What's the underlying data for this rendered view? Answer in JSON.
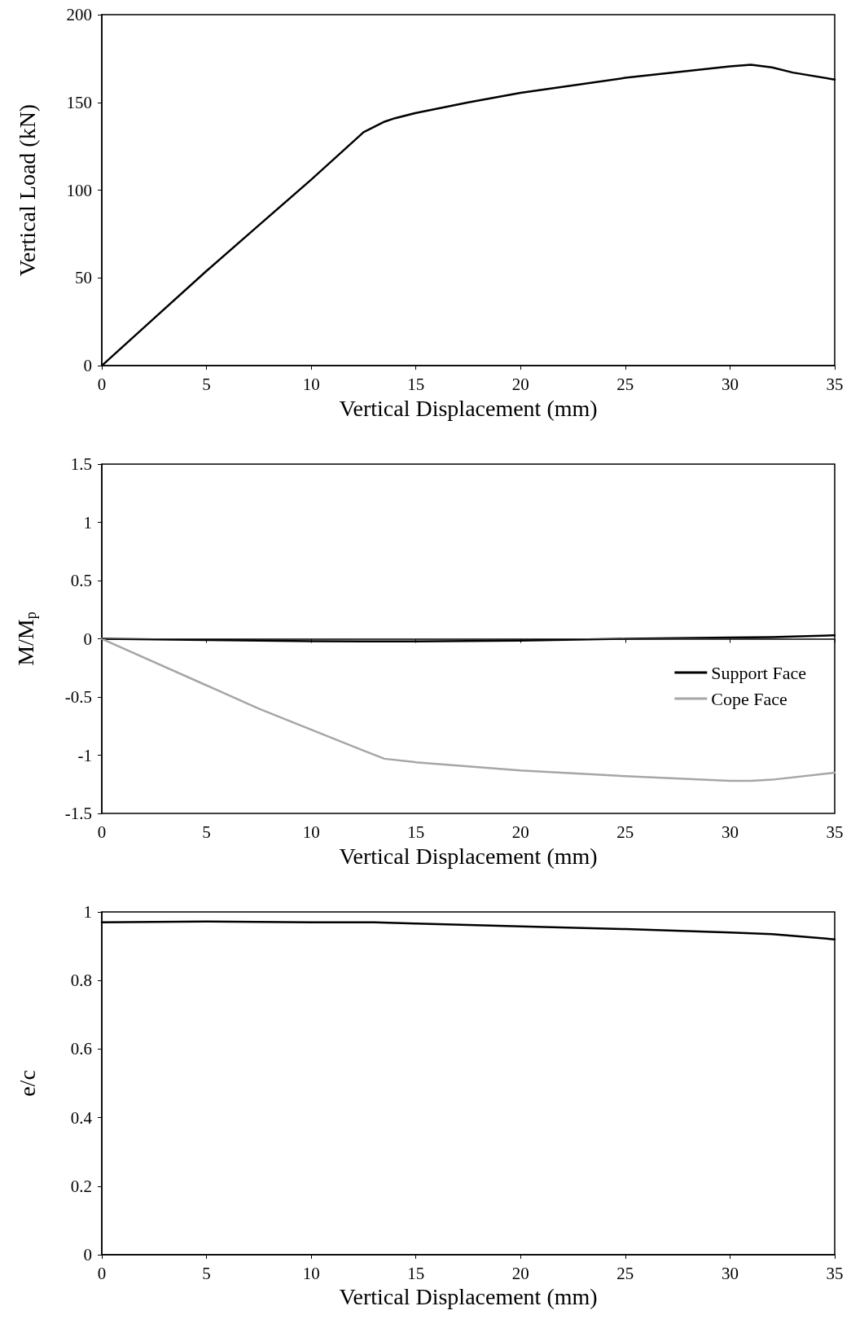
{
  "chart_data": [
    {
      "type": "line",
      "xlabel": "Vertical Displacement (mm)",
      "ylabel": "Vertical Load (kN)",
      "x": [
        0,
        2.5,
        5,
        7.5,
        10,
        12.5,
        13.5,
        14,
        15,
        17.5,
        20,
        25,
        30,
        31,
        32,
        33,
        35
      ],
      "values": [
        0,
        27,
        54,
        80,
        106,
        133,
        139,
        141,
        144,
        150,
        155.5,
        164,
        170.5,
        171.5,
        170,
        167,
        163
      ],
      "color": "#000000",
      "xlim": [
        0,
        35
      ],
      "xticks": [
        0,
        5,
        10,
        15,
        20,
        25,
        30,
        35
      ],
      "ylim": [
        0,
        200
      ],
      "yticks": [
        0,
        50,
        100,
        150,
        200
      ],
      "grid": false,
      "legend": false,
      "marker": "none",
      "line_style": "solid"
    },
    {
      "type": "line",
      "xlabel": "Vertical Displacement (mm)",
      "ylabel": "M/M$_{p}$",
      "x": [
        0,
        5,
        7.5,
        10,
        12.5,
        13.5,
        15,
        20,
        25,
        30,
        31,
        32,
        35
      ],
      "series": [
        {
          "name": "Support Face",
          "color": "#000000",
          "values": [
            0,
            -0.01,
            -0.015,
            -0.02,
            -0.022,
            -0.023,
            -0.023,
            -0.015,
            0,
            0.01,
            0.012,
            0.015,
            0.03
          ]
        },
        {
          "name": "Cope Face",
          "color": "#a6a6a6",
          "values": [
            0,
            -0.4,
            -0.6,
            -0.78,
            -0.96,
            -1.03,
            -1.06,
            -1.13,
            -1.18,
            -1.22,
            -1.22,
            -1.21,
            -1.15
          ]
        }
      ],
      "xlim": [
        0,
        35
      ],
      "xticks": [
        0,
        5,
        10,
        15,
        20,
        25,
        30,
        35
      ],
      "ylim": [
        -1.5,
        1.5
      ],
      "yticks": [
        -1.5,
        -1,
        -0.5,
        0,
        0.5,
        1,
        1.5
      ],
      "ref_lines": [
        {
          "axis": "y",
          "value": 0,
          "color": "#404040"
        }
      ],
      "grid": false,
      "legend": "right",
      "marker": "none",
      "line_style": "solid"
    },
    {
      "type": "line",
      "xlabel": "Vertical Displacement (mm)",
      "ylabel": "e/c",
      "x": [
        0,
        5,
        10,
        13,
        15,
        20,
        25,
        30,
        32,
        35
      ],
      "values": [
        0.97,
        0.972,
        0.97,
        0.97,
        0.966,
        0.958,
        0.95,
        0.94,
        0.935,
        0.92
      ],
      "color": "#000000",
      "xlim": [
        0,
        35
      ],
      "xticks": [
        0,
        5,
        10,
        15,
        20,
        25,
        30,
        35
      ],
      "ylim": [
        0,
        1
      ],
      "yticks": [
        0,
        0.2,
        0.4,
        0.6,
        0.8,
        1
      ],
      "grid": false,
      "legend": false,
      "marker": "none",
      "line_style": "solid"
    }
  ]
}
